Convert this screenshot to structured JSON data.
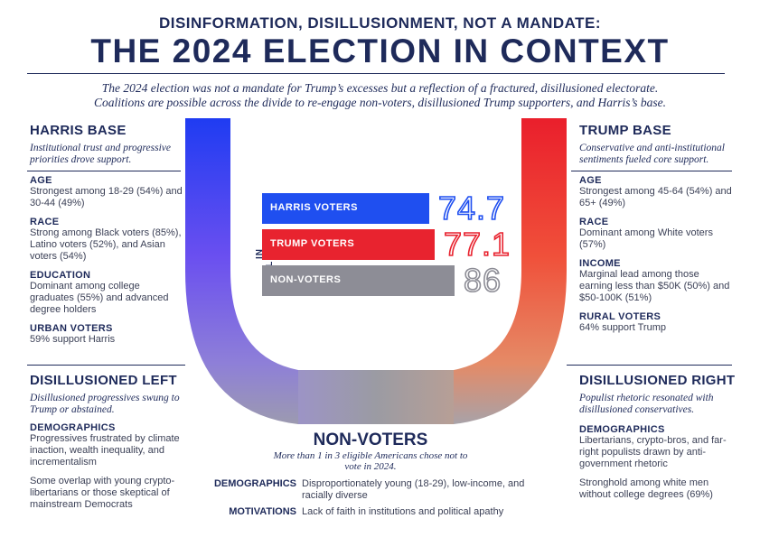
{
  "supertitle": "DISINFORMATION, DISILLUSIONMENT, NOT A MANDATE:",
  "title": "THE 2024 ELECTION IN CONTEXT",
  "subtitle_line1": "The 2024 election was not a mandate for Trump’s excesses but a reflection of a fractured, disillusioned electorate.",
  "subtitle_line2": "Coalitions are possible across the divide to re-engage non-voters, disillusioned Trump supporters, and Harris’s base.",
  "colors": {
    "harris": "#1f4ff0",
    "trump": "#e8232f",
    "nonvoters": "#8d8d96",
    "navy": "#1e2a5a"
  },
  "harris_base": {
    "heading": "HARRIS BASE",
    "subheading": "Institutional trust and progressive priorities drove support.",
    "blocks": [
      {
        "h": "AGE",
        "t": "Strongest among 18-29 (54%) and 30-44 (49%)"
      },
      {
        "h": "RACE",
        "t": "Strong among Black voters (85%), Latino voters (52%), and Asian voters (54%)"
      },
      {
        "h": "EDUCATION",
        "t": "Dominant among college graduates (55%) and advanced degree holders"
      },
      {
        "h": "URBAN VOTERS",
        "t": "59% support Harris"
      }
    ]
  },
  "trump_base": {
    "heading": "TRUMP BASE",
    "subheading": "Conservative and anti-institutional sentiments fueled core support.",
    "blocks": [
      {
        "h": "AGE",
        "t": "Strongest among 45-64 (54%) and 65+ (49%)"
      },
      {
        "h": "RACE",
        "t": "Dominant among White voters (57%)"
      },
      {
        "h": "INCOME",
        "t": "Marginal lead among those earning less than $50K (50%) and $50-100K (51%)"
      },
      {
        "h": "RURAL VOTERS",
        "t": "64% support Trump"
      }
    ]
  },
  "disillusioned_left": {
    "heading": "DISILLUSIONED LEFT",
    "subheading": "Disillusioned progressives swung to Trump or abstained.",
    "blocks": [
      {
        "h": "DEMOGRAPHICS",
        "t": "Progressives frustrated by climate inaction, wealth inequality, and incrementalism"
      },
      {
        "h": "",
        "t": "Some overlap with young crypto-libertarians or those skeptical of mainstream Democrats"
      }
    ]
  },
  "disillusioned_right": {
    "heading": "DISILLUSIONED RIGHT",
    "subheading": "Populist rhetoric resonated with disillusioned conservatives.",
    "blocks": [
      {
        "h": "DEMOGRAPHICS",
        "t": "Libertarians, crypto-bros, and far-right populists drawn by anti-government rhetoric"
      },
      {
        "h": "",
        "t": "Stronghold among white men without college degrees (69%)"
      }
    ]
  },
  "non_voters": {
    "heading": "NON-VOTERS",
    "subheading": "More than 1 in 3 eligible Americans chose not to vote in 2024.",
    "demographics_label": "DEMOGRAPHICS",
    "demographics_text": "Disproportionately young (18-29), low-income, and racially diverse",
    "motivations_label": "MOTIVATIONS",
    "motivations_text": "Lack of faith in institutions and political apathy"
  },
  "chart_data": {
    "type": "bar",
    "orientation": "horizontal",
    "axis_label": "IN MILLIONS",
    "categories": [
      "HARRIS VOTERS",
      "TRUMP VOTERS",
      "NON-VOTERS"
    ],
    "values": [
      74.7,
      77.1,
      86
    ],
    "value_labels": [
      "74.7",
      "77.1",
      "86"
    ],
    "colors": [
      "#1f4ff0",
      "#e8232f",
      "#8d8d96"
    ]
  }
}
